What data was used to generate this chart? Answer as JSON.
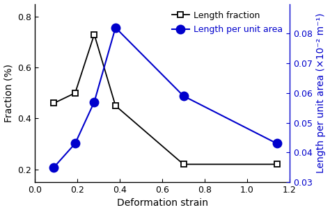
{
  "black_x": [
    0.09,
    0.19,
    0.28,
    0.38,
    0.7,
    1.14
  ],
  "black_y": [
    0.46,
    0.5,
    0.73,
    0.45,
    0.22,
    0.22
  ],
  "blue_x": [
    0.09,
    0.19,
    0.28,
    0.38,
    0.7,
    1.14
  ],
  "blue_y": [
    0.035,
    0.043,
    0.057,
    0.082,
    0.059,
    0.043
  ],
  "xlabel": "Deformation strain",
  "ylabel_left": "Fraction (%)",
  "ylabel_right": "Length per unit area (×10⁻² m⁻¹)",
  "legend_label_black": "Length fraction",
  "legend_label_blue": "Length per unit area",
  "xlim": [
    0.0,
    1.2
  ],
  "ylim_left": [
    0.15,
    0.85
  ],
  "ylim_right": [
    0.03,
    0.09
  ],
  "xticks": [
    0.0,
    0.2,
    0.4,
    0.6,
    0.8,
    1.0,
    1.2
  ],
  "yticks_left": [
    0.2,
    0.4,
    0.6,
    0.8
  ],
  "yticks_right": [
    0.03,
    0.04,
    0.05,
    0.06,
    0.07,
    0.08
  ],
  "black_color": "#000000",
  "blue_color": "#0000cc",
  "bg_color": "#ffffff",
  "fontsize": 10,
  "tick_fontsize": 9,
  "legend_fontsize": 9
}
